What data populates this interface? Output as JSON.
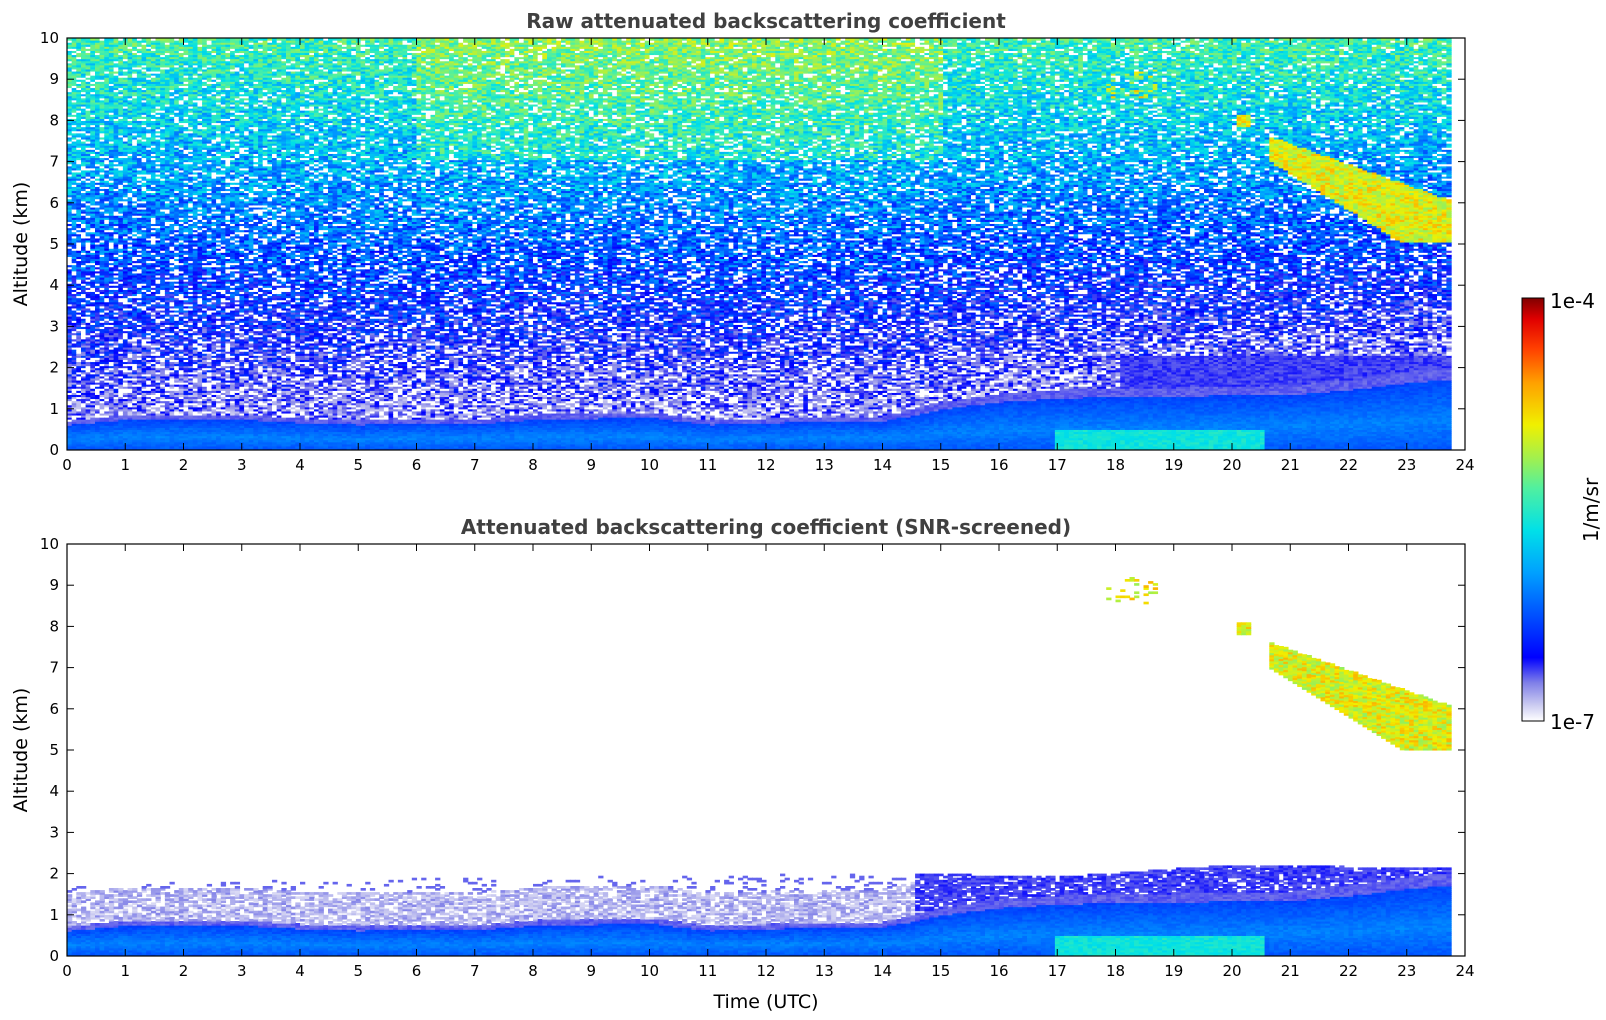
{
  "chart_data": [
    {
      "type": "heatmap",
      "title": "Raw attenuated backscattering coefficient",
      "xlabel": "",
      "ylabel": "Altitude (km)",
      "xlim": [
        0,
        24
      ],
      "ylim": [
        0,
        10
      ],
      "xticks": [
        0,
        1,
        2,
        3,
        4,
        5,
        6,
        7,
        8,
        9,
        10,
        11,
        12,
        13,
        14,
        15,
        16,
        17,
        18,
        19,
        20,
        21,
        22,
        23,
        24
      ],
      "yticks": [
        0,
        1,
        2,
        3,
        4,
        5,
        6,
        7,
        8,
        9,
        10
      ],
      "data_end_time": 23.7,
      "boundary_layer_top_km": [
        [
          0,
          0.7
        ],
        [
          1,
          0.85
        ],
        [
          2,
          0.85
        ],
        [
          3,
          0.85
        ],
        [
          4,
          0.75
        ],
        [
          5,
          0.7
        ],
        [
          6,
          0.75
        ],
        [
          7,
          0.72
        ],
        [
          8,
          0.85
        ],
        [
          9,
          0.88
        ],
        [
          10,
          0.9
        ],
        [
          11,
          0.7
        ],
        [
          12,
          0.75
        ],
        [
          13,
          0.8
        ],
        [
          14,
          0.8
        ],
        [
          15,
          1.15
        ],
        [
          16,
          1.35
        ],
        [
          17,
          1.45
        ],
        [
          18,
          1.5
        ],
        [
          19,
          1.5
        ],
        [
          20,
          1.55
        ],
        [
          21,
          1.55
        ],
        [
          22,
          1.7
        ],
        [
          23,
          1.9
        ],
        [
          23.7,
          2.0
        ]
      ],
      "noise_transition_km": 2.0,
      "cloud_regions": [
        {
          "label": "cirrus",
          "t_start": 20.6,
          "t_end": 23.8,
          "alt_bottom_km": 5.0,
          "alt_top_km": 7.6
        },
        {
          "label": "cloud-patch",
          "t_start": 20.0,
          "t_end": 20.3,
          "alt_bottom_km": 7.8,
          "alt_top_km": 8.1
        },
        {
          "label": "specks",
          "t_start": 17.8,
          "t_end": 18.7,
          "alt_bottom_km": 8.5,
          "alt_top_km": 9.2
        }
      ]
    },
    {
      "type": "heatmap",
      "title": "Attenuated backscattering coefficient (SNR-screened)",
      "xlabel": "Time (UTC)",
      "ylabel": "Altitude (km)",
      "xlim": [
        0,
        24
      ],
      "ylim": [
        0,
        10
      ],
      "xticks": [
        0,
        1,
        2,
        3,
        4,
        5,
        6,
        7,
        8,
        9,
        10,
        11,
        12,
        13,
        14,
        15,
        16,
        17,
        18,
        19,
        20,
        21,
        22,
        23,
        24
      ],
      "yticks": [
        0,
        1,
        2,
        3,
        4,
        5,
        6,
        7,
        8,
        9,
        10
      ],
      "data_end_time": 23.7,
      "screened_top_km": [
        [
          0,
          1.7
        ],
        [
          7,
          1.9
        ],
        [
          14,
          2.0
        ],
        [
          17,
          1.9
        ],
        [
          20,
          2.2
        ],
        [
          23.7,
          2.1
        ]
      ]
    }
  ],
  "colorbar": {
    "label": "1/m/sr",
    "min_label": "1e-7",
    "max_label": "1e-4",
    "colors": [
      "#ffffff",
      "#c8c8f0",
      "#8080e8",
      "#0000ff",
      "#0050ff",
      "#00a0ff",
      "#00e0e8",
      "#50f0a0",
      "#a0f050",
      "#f0f000",
      "#ffa000",
      "#ff4000",
      "#e00000",
      "#800000"
    ]
  }
}
